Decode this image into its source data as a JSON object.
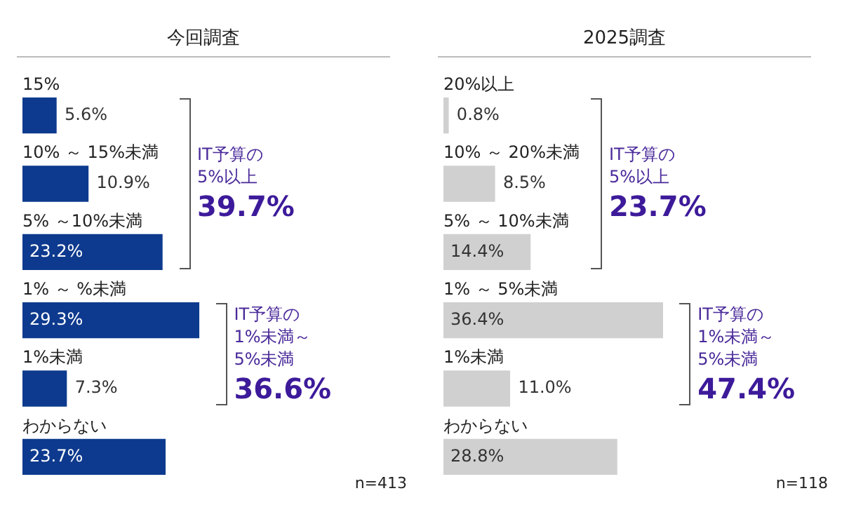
{
  "chart_data": [
    {
      "type": "bar",
      "orientation": "horizontal",
      "title": "今回調査",
      "categories": [
        "15%",
        "10% ～ 15%未満",
        "5% ～10%未満",
        "1% ～ %未満",
        "1%未満",
        "わからない"
      ],
      "values": [
        5.6,
        10.9,
        23.2,
        29.3,
        7.3,
        23.7
      ],
      "value_labels": [
        "5.6%",
        "10.9%",
        "23.2%",
        "29.3%",
        "7.3%",
        "23.7%"
      ],
      "color": "#0d3a8e",
      "tick_labels": "y",
      "annotations": [
        "IT予算の\n5%以上\n39.7%",
        "IT予算の\n1%未満～\n5%未満\n36.6%",
        "n=413"
      ]
    },
    {
      "type": "bar",
      "orientation": "horizontal",
      "title": "2025調査",
      "categories": [
        "20%以上",
        "10% ～ 20%未満",
        "5% ～ 10%未満",
        "1% ～ 5%未満",
        "1%未満",
        "わからない"
      ],
      "values": [
        0.8,
        8.5,
        14.4,
        36.4,
        11.0,
        28.8
      ],
      "value_labels": [
        "0.8%",
        "8.5%",
        "14.4%",
        "36.4%",
        "11.0%",
        "28.8%"
      ],
      "color": "#d0d0d0",
      "tick_labels": "y",
      "annotations": [
        "IT予算の\n5%以上\n23.7%",
        "IT予算の\n1%未満～\n5%未満\n47.4%",
        "n=118"
      ]
    }
  ]
}
